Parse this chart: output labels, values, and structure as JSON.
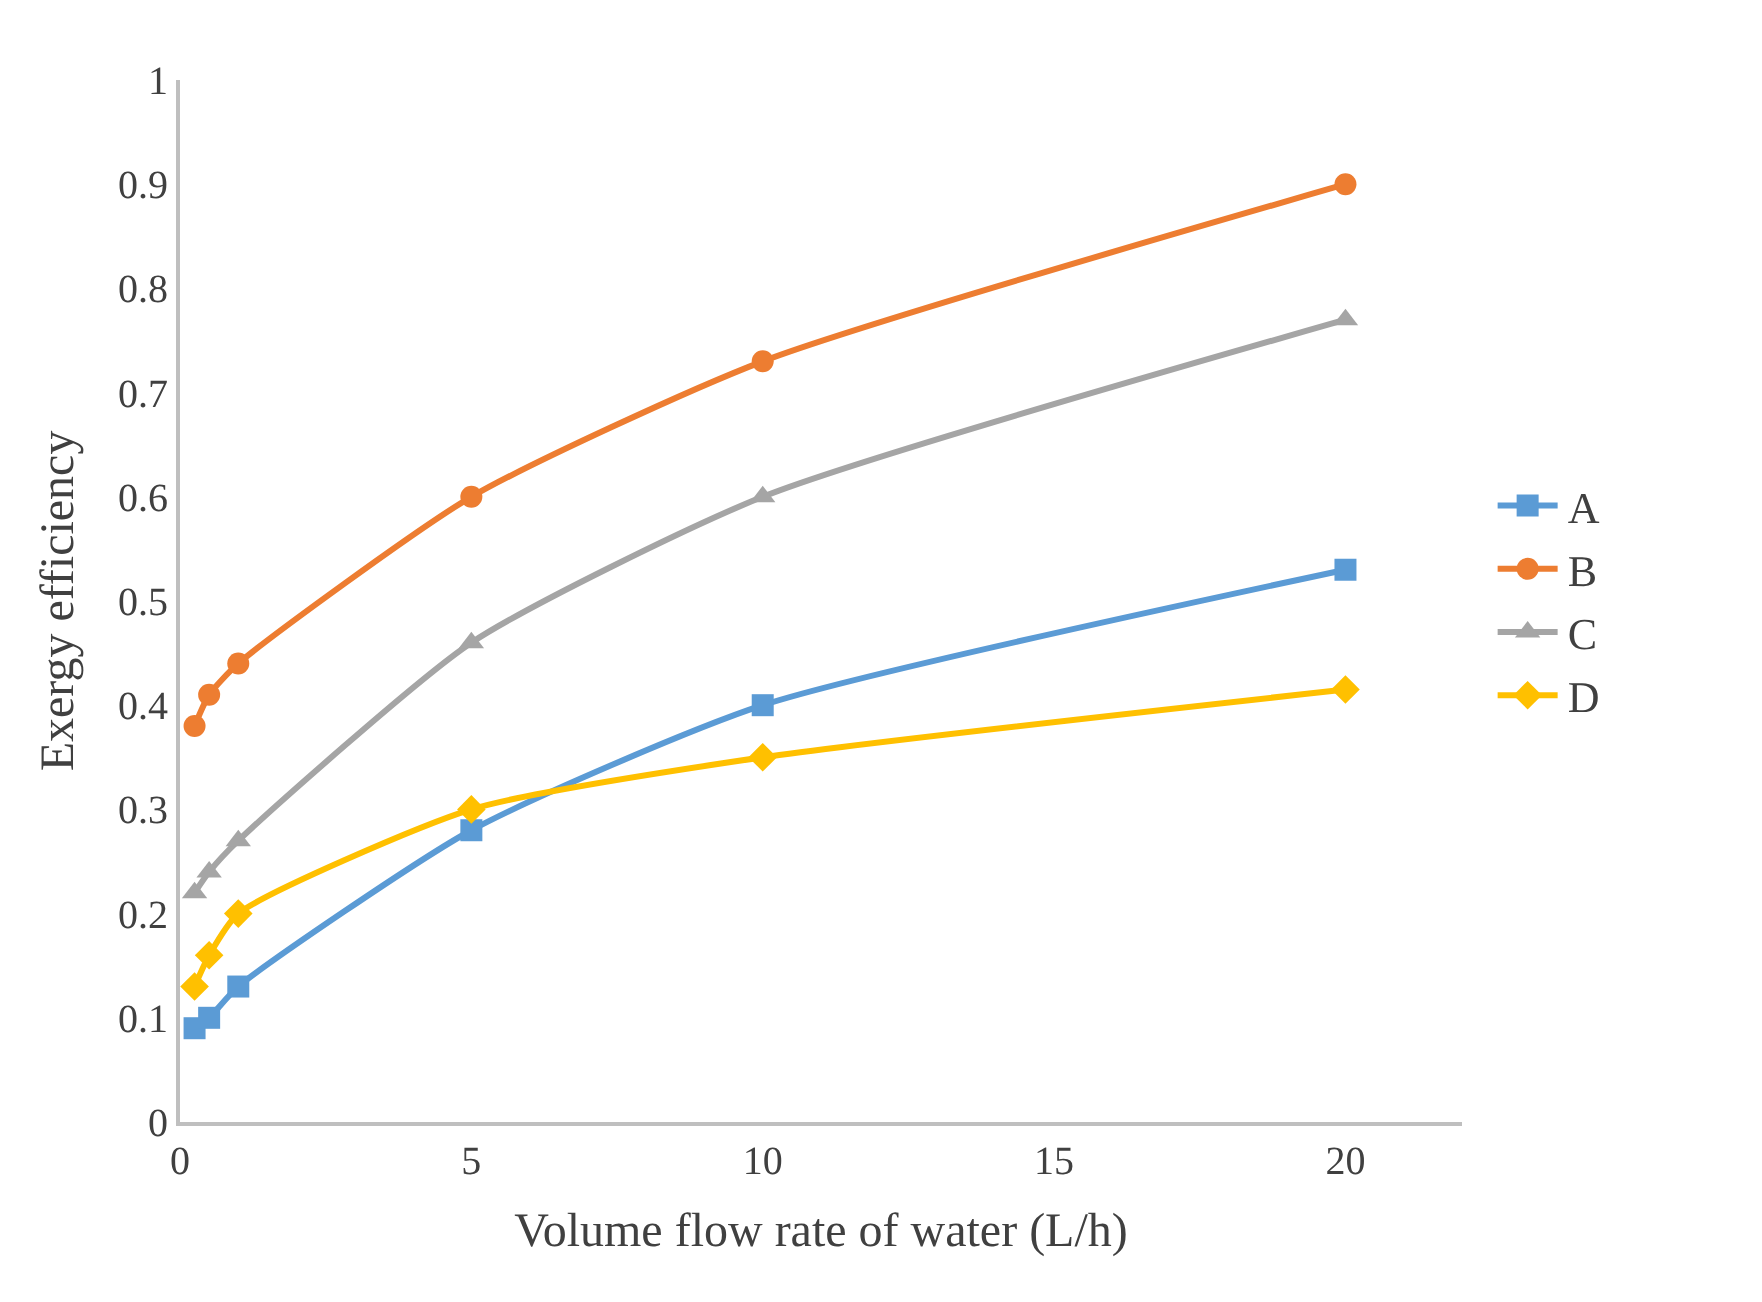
{
  "chart_data": {
    "type": "line",
    "xlabel": "Volume flow rate of water (L/h)",
    "ylabel": "Exergy efficiency",
    "x": [
      0.25,
      0.5,
      1,
      5,
      10,
      20
    ],
    "series": [
      {
        "name": "A",
        "color": "#5b9bd5",
        "marker": "square",
        "values": [
          0.09,
          0.1,
          0.13,
          0.28,
          0.4,
          0.53
        ]
      },
      {
        "name": "B",
        "color": "#ed7d31",
        "marker": "circle",
        "values": [
          0.38,
          0.41,
          0.44,
          0.6,
          0.73,
          0.9
        ]
      },
      {
        "name": "C",
        "color": "#a5a5a5",
        "marker": "triangle",
        "values": [
          0.22,
          0.24,
          0.27,
          0.46,
          0.6,
          0.77
        ]
      },
      {
        "name": "D",
        "color": "#ffc000",
        "marker": "diamond",
        "values": [
          0.13,
          0.16,
          0.2,
          0.3,
          0.35,
          0.415
        ]
      }
    ],
    "xlim": [
      0,
      22
    ],
    "xticks": [
      0,
      5,
      10,
      15,
      20
    ],
    "ylim": [
      0,
      1
    ],
    "yticks": [
      0,
      0.1,
      0.2,
      0.3,
      0.4,
      0.5,
      0.6,
      0.7,
      0.8,
      0.9,
      1
    ],
    "legend": "right"
  }
}
